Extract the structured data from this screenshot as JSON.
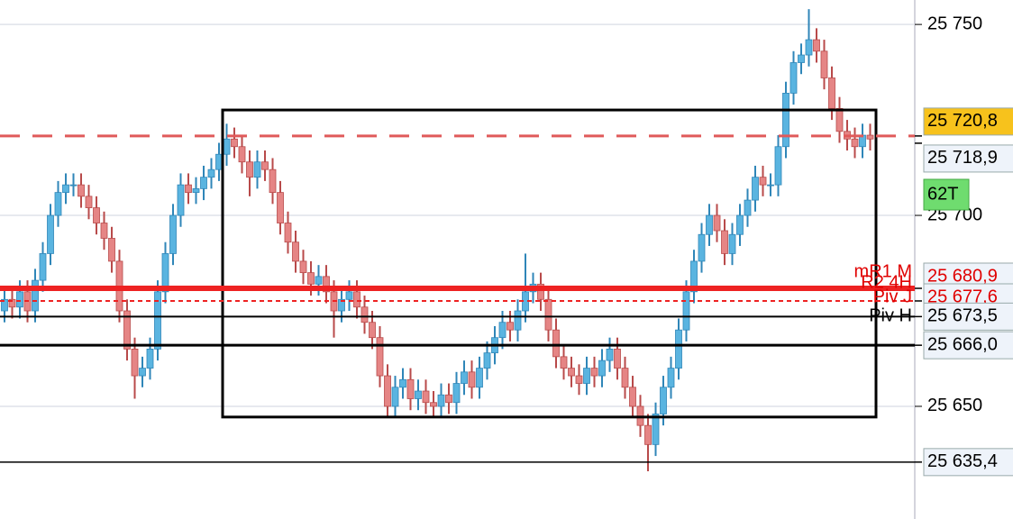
{
  "chart_data": {
    "type": "candlestick",
    "ylim": [
      25620.5,
      25756.4
    ],
    "yticks": [
      {
        "value": 25750,
        "label": "25 750"
      },
      {
        "value": 25700,
        "label": "25 700"
      },
      {
        "value": 25650,
        "label": "25 650"
      }
    ],
    "grid": true,
    "up_color": "#5ab4e0",
    "down_color": "#e58585",
    "open": [
      25675,
      25678,
      25676,
      25680,
      25675,
      25683,
      25690,
      25700,
      25706,
      25708,
      25708,
      25705,
      25702,
      25698,
      25694,
      25688,
      25675,
      25665,
      25658,
      25660,
      25665,
      25680,
      25690,
      25700,
      25708,
      25706,
      25707,
      25710,
      25712,
      25716,
      25720,
      25718,
      25714,
      25710,
      25714,
      25712,
      25706,
      25698,
      25693,
      25688,
      25685,
      25682,
      25684,
      25680,
      25675,
      25678,
      25680,
      25676,
      25672,
      25668,
      25658,
      25650,
      25655,
      25657,
      25652,
      25654,
      25651,
      25650,
      25653,
      25651,
      25656,
      25659,
      25655,
      25660,
      25664,
      25668,
      25672,
      25670,
      25675,
      25680,
      25682,
      25678,
      25670,
      25663,
      25660,
      25658,
      25656,
      25660,
      25658,
      25662,
      25665,
      25660,
      25655,
      25650,
      25645,
      25640,
      25648,
      25655,
      25660,
      25670,
      25680,
      25688,
      25695,
      25700,
      25696,
      25690,
      25695,
      25700,
      25704,
      25710,
      25708,
      25708,
      25718,
      25732,
      25740,
      25742,
      25746,
      25743,
      25736,
      25728,
      25722,
      25720,
      25718,
      25721
    ],
    "high": [
      25681,
      25681,
      25683,
      25683,
      25686,
      25693,
      25703,
      25709,
      25711,
      25711,
      25711,
      25708,
      25705,
      25701,
      25697,
      25691,
      25678,
      25668,
      25663,
      25668,
      25683,
      25693,
      25703,
      25711,
      25711,
      25710,
      25713,
      25715,
      25719,
      25724,
      25723,
      25721,
      25717,
      25717,
      25717,
      25715,
      25709,
      25701,
      25696,
      25691,
      25688,
      25687,
      25687,
      25683,
      25681,
      25683,
      25683,
      25679,
      25675,
      25671,
      25661,
      25658,
      25660,
      25660,
      25657,
      25657,
      25654,
      25656,
      25656,
      25659,
      25662,
      25662,
      25663,
      25667,
      25671,
      25675,
      25675,
      25678,
      25690,
      25685,
      25685,
      25681,
      25673,
      25666,
      25663,
      25661,
      25663,
      25663,
      25665,
      25668,
      25668,
      25663,
      25658,
      25653,
      25648,
      25651,
      25658,
      25663,
      25673,
      25683,
      25691,
      25698,
      25703,
      25703,
      25699,
      25698,
      25703,
      25707,
      25713,
      25713,
      25711,
      25721,
      25735,
      25743,
      25745,
      25754,
      25749,
      25746,
      25739,
      25731,
      25725,
      25723,
      25724,
      25724
    ],
    "low": [
      25672,
      25673,
      25673,
      25672,
      25672,
      25680,
      25687,
      25697,
      25703,
      25705,
      25702,
      25699,
      25695,
      25691,
      25685,
      25672,
      25662,
      25652,
      25655,
      25657,
      25662,
      25677,
      25687,
      25697,
      25703,
      25703,
      25704,
      25707,
      25709,
      25713,
      25715,
      25711,
      25705,
      25707,
      25709,
      25703,
      25695,
      25690,
      25685,
      25682,
      25679,
      25679,
      25677,
      25668,
      25672,
      25675,
      25673,
      25669,
      25665,
      25655,
      25647,
      25647,
      25652,
      25649,
      25649,
      25648,
      25647,
      25647,
      25648,
      25648,
      25653,
      25652,
      25652,
      25657,
      25661,
      25665,
      25667,
      25667,
      25672,
      25677,
      25675,
      25667,
      25660,
      25657,
      25655,
      25653,
      25653,
      25655,
      25655,
      25659,
      25657,
      25652,
      25647,
      25642,
      25633,
      25637,
      25645,
      25652,
      25657,
      25667,
      25677,
      25685,
      25692,
      25693,
      25687,
      25687,
      25692,
      25697,
      25701,
      25705,
      25705,
      25705,
      25715,
      25729,
      25737,
      25739,
      25740,
      25733,
      25725,
      25719,
      25717,
      25715,
      25715,
      25717
    ],
    "close": [
      25678,
      25676,
      25680,
      25675,
      25683,
      25690,
      25700,
      25706,
      25708,
      25708,
      25705,
      25702,
      25698,
      25694,
      25688,
      25675,
      25665,
      25658,
      25660,
      25665,
      25680,
      25690,
      25700,
      25708,
      25706,
      25707,
      25710,
      25712,
      25716,
      25720,
      25718,
      25714,
      25710,
      25714,
      25712,
      25706,
      25698,
      25693,
      25688,
      25685,
      25682,
      25684,
      25680,
      25675,
      25678,
      25680,
      25676,
      25672,
      25668,
      25658,
      25650,
      25655,
      25657,
      25652,
      25654,
      25651,
      25650,
      25653,
      25651,
      25656,
      25659,
      25655,
      25660,
      25664,
      25668,
      25672,
      25670,
      25675,
      25680,
      25682,
      25678,
      25670,
      25663,
      25660,
      25658,
      25656,
      25660,
      25658,
      25662,
      25665,
      25660,
      25655,
      25650,
      25645,
      25640,
      25648,
      25655,
      25660,
      25670,
      25680,
      25688,
      25695,
      25700,
      25696,
      25690,
      25695,
      25700,
      25704,
      25710,
      25708,
      25708,
      25718,
      25732,
      25740,
      25742,
      25746,
      25743,
      25736,
      25728,
      25722,
      25720,
      25718,
      25721,
      25720
    ],
    "box": {
      "top": 25727.6,
      "bottom": 25647.2
    },
    "levels": [
      {
        "value": 25720.8,
        "color": "#e05a5a",
        "style": "dashed",
        "tag": "25 720,8",
        "tag_fill": "#f7c21c",
        "tag_color": "#000"
      },
      {
        "value": 25718.9,
        "color": null,
        "style": "none",
        "tag": "25 718,9",
        "tag_fill": "#eef3fa",
        "tag_color": "#000"
      },
      {
        "value": 25680.9,
        "color": "#ee2222",
        "style": "thick",
        "tag": "25 680,9",
        "tag_fill": "#eef3fa",
        "tag_color": "#e00000",
        "labels": [
          "mR1 M",
          "R2 4H"
        ]
      },
      {
        "value": 25677.6,
        "color": "#ee2222",
        "style": "dotted",
        "tag": "25 677,6",
        "tag_fill": "#eef3fa",
        "tag_color": "#e00000",
        "labels": [
          "Piv J"
        ]
      },
      {
        "value": 25673.5,
        "color": "#000",
        "style": "solid",
        "tag": "25 673,5",
        "tag_fill": "#eef3fa",
        "tag_color": "#000",
        "labels": [
          "Piv H"
        ]
      },
      {
        "value": 25666.0,
        "color": "#000",
        "style": "thick-black",
        "tag": "25 666,0",
        "tag_fill": "#eef3fa",
        "tag_color": "#000"
      },
      {
        "value": 25635.4,
        "color": "#000",
        "style": "thin",
        "tag": "25 635,4",
        "tag_fill": "#eef3fa",
        "tag_color": "#000"
      }
    ],
    "badge": "62T"
  }
}
